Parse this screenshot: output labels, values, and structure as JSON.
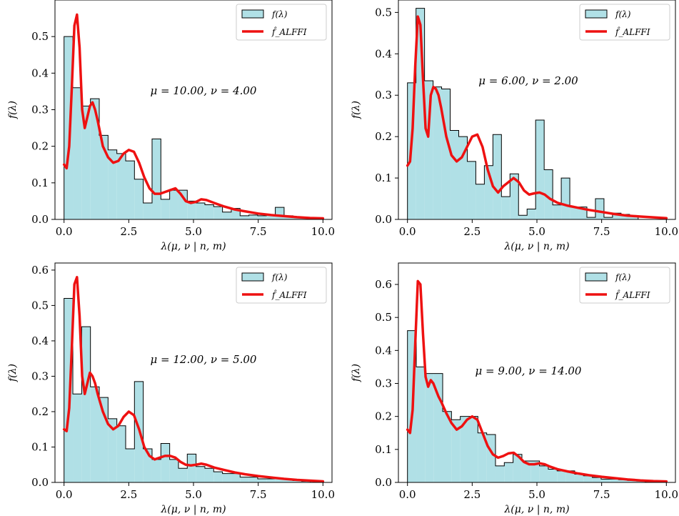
{
  "colors": {
    "hist_fill": "#b0e0e6",
    "hist_edge": "#000000",
    "curve": "#ee1111",
    "legend_border": "#cccccc"
  },
  "chart_data": [
    {
      "type": "bar",
      "subtype": "histogram_with_density_curve",
      "annotation": "μ = 10.00, ν = 4.00",
      "xlabel": "λ(μ, ν | n, m)",
      "ylabel": "f(λ)",
      "xlim": [
        -0.35,
        10.35
      ],
      "ylim": [
        0,
        0.6
      ],
      "xticks": [
        "0.0",
        "2.5",
        "5.0",
        "7.5",
        "10.0"
      ],
      "yticks": [
        "0.0",
        "0.1",
        "0.2",
        "0.3",
        "0.4",
        "0.5"
      ],
      "ytick_values": [
        0,
        0.1,
        0.2,
        0.3,
        0.4,
        0.5
      ],
      "legend_position": "upper right",
      "legend": [
        "f(λ)",
        "f̂_ALFFI"
      ],
      "histogram": {
        "bin_edges": [
          0.0,
          0.34,
          0.68,
          1.02,
          1.36,
          1.7,
          2.04,
          2.38,
          2.72,
          3.06,
          3.4,
          3.74,
          4.08,
          4.42,
          4.76,
          5.1,
          5.44,
          5.78,
          6.12,
          6.46,
          6.8,
          7.14,
          7.48,
          7.82,
          8.16,
          8.5,
          8.84,
          9.18,
          9.52
        ],
        "values": [
          0.5,
          0.36,
          0.31,
          0.33,
          0.23,
          0.19,
          0.18,
          0.16,
          0.11,
          0.045,
          0.22,
          0.055,
          0.08,
          0.08,
          0.05,
          0.045,
          0.04,
          0.035,
          0.02,
          0.03,
          0.01,
          0.012,
          0.01,
          0.012,
          0.033,
          0.01,
          0.005,
          0.003
        ]
      },
      "curve": {
        "x": [
          0.0,
          0.1,
          0.2,
          0.3,
          0.4,
          0.5,
          0.6,
          0.7,
          0.8,
          0.9,
          1.0,
          1.1,
          1.2,
          1.3,
          1.5,
          1.7,
          1.9,
          2.1,
          2.3,
          2.5,
          2.7,
          2.9,
          3.1,
          3.3,
          3.5,
          3.7,
          3.9,
          4.1,
          4.3,
          4.5,
          4.7,
          4.9,
          5.1,
          5.3,
          5.5,
          5.8,
          6.2,
          6.6,
          7.0,
          7.5,
          8.0,
          8.5,
          9.0,
          9.5,
          10.0
        ],
        "y": [
          0.15,
          0.14,
          0.2,
          0.36,
          0.53,
          0.56,
          0.47,
          0.3,
          0.25,
          0.28,
          0.31,
          0.32,
          0.3,
          0.27,
          0.2,
          0.17,
          0.155,
          0.16,
          0.18,
          0.19,
          0.185,
          0.155,
          0.115,
          0.085,
          0.07,
          0.07,
          0.075,
          0.08,
          0.085,
          0.07,
          0.05,
          0.045,
          0.048,
          0.055,
          0.053,
          0.045,
          0.035,
          0.027,
          0.022,
          0.016,
          0.012,
          0.009,
          0.006,
          0.004,
          0.003
        ]
      }
    },
    {
      "type": "bar",
      "subtype": "histogram_with_density_curve",
      "annotation": "μ = 6.00, ν = 2.00",
      "xlabel": "λ(μ, ν | n, m)",
      "ylabel": "f(λ)",
      "xlim": [
        -0.35,
        10.35
      ],
      "ylim": [
        0,
        0.53
      ],
      "xticks": [
        "0.0",
        "2.5",
        "5.0",
        "7.5",
        "10.0"
      ],
      "yticks": [
        "0.0",
        "0.1",
        "0.2",
        "0.3",
        "0.4",
        "0.5"
      ],
      "ytick_values": [
        0,
        0.1,
        0.2,
        0.3,
        0.4,
        0.5
      ],
      "legend_position": "upper right",
      "legend": [
        "f(λ)",
        "f̂_ALFFI"
      ],
      "histogram": {
        "bin_edges": [
          0.0,
          0.33,
          0.66,
          0.99,
          1.32,
          1.65,
          1.98,
          2.31,
          2.64,
          2.97,
          3.3,
          3.63,
          3.96,
          4.29,
          4.62,
          4.95,
          5.28,
          5.61,
          5.94,
          6.27,
          6.6,
          6.93,
          7.26,
          7.59,
          7.92,
          8.25,
          8.58,
          8.91
        ],
        "values": [
          0.33,
          0.51,
          0.335,
          0.32,
          0.315,
          0.215,
          0.2,
          0.14,
          0.085,
          0.13,
          0.205,
          0.055,
          0.11,
          0.01,
          0.025,
          0.24,
          0.12,
          0.035,
          0.1,
          0.03,
          0.03,
          0.005,
          0.05,
          0.005,
          0.015,
          0.012,
          0.008
        ]
      },
      "curve": {
        "x": [
          0.0,
          0.1,
          0.2,
          0.3,
          0.4,
          0.5,
          0.6,
          0.7,
          0.8,
          0.9,
          1.0,
          1.1,
          1.2,
          1.3,
          1.5,
          1.7,
          1.9,
          2.1,
          2.3,
          2.5,
          2.7,
          2.9,
          3.1,
          3.3,
          3.5,
          3.7,
          3.9,
          4.1,
          4.3,
          4.5,
          4.7,
          4.9,
          5.1,
          5.3,
          5.5,
          5.8,
          6.2,
          6.6,
          7.0,
          7.5,
          8.0,
          8.5,
          9.0,
          9.5,
          10.0
        ],
        "y": [
          0.13,
          0.14,
          0.22,
          0.37,
          0.49,
          0.47,
          0.34,
          0.22,
          0.2,
          0.3,
          0.32,
          0.315,
          0.3,
          0.27,
          0.2,
          0.155,
          0.14,
          0.15,
          0.175,
          0.2,
          0.205,
          0.175,
          0.12,
          0.08,
          0.065,
          0.08,
          0.09,
          0.1,
          0.09,
          0.07,
          0.06,
          0.063,
          0.065,
          0.06,
          0.05,
          0.04,
          0.033,
          0.028,
          0.023,
          0.018,
          0.013,
          0.009,
          0.007,
          0.005,
          0.003
        ]
      }
    },
    {
      "type": "bar",
      "subtype": "histogram_with_density_curve",
      "annotation": "μ = 12.00, ν = 5.00",
      "xlabel": "λ(μ, ν | n, m)",
      "ylabel": "f(λ)",
      "xlim": [
        -0.35,
        10.35
      ],
      "ylim": [
        0,
        0.62
      ],
      "xticks": [
        "0.0",
        "2.5",
        "5.0",
        "7.5",
        "10.0"
      ],
      "yticks": [
        "0.0",
        "0.1",
        "0.2",
        "0.3",
        "0.4",
        "0.5",
        "0.6"
      ],
      "ytick_values": [
        0,
        0.1,
        0.2,
        0.3,
        0.4,
        0.5,
        0.6
      ],
      "legend_position": "upper right",
      "legend": [
        "f(λ)",
        "f̂_ALFFI"
      ],
      "histogram": {
        "bin_edges": [
          0.0,
          0.34,
          0.68,
          1.02,
          1.36,
          1.7,
          2.04,
          2.38,
          2.72,
          3.06,
          3.4,
          3.74,
          4.08,
          4.42,
          4.76,
          5.1,
          5.44,
          5.78,
          6.12,
          6.46,
          6.8,
          7.14,
          7.48,
          7.82,
          8.16,
          8.5,
          8.84,
          9.18,
          9.52
        ],
        "values": [
          0.52,
          0.25,
          0.44,
          0.27,
          0.24,
          0.18,
          0.16,
          0.095,
          0.285,
          0.095,
          0.065,
          0.11,
          0.065,
          0.04,
          0.08,
          0.045,
          0.04,
          0.03,
          0.025,
          0.025,
          0.015,
          0.015,
          0.01,
          0.01,
          0.01,
          0.008,
          0.005,
          0.003
        ]
      },
      "curve": {
        "x": [
          0.0,
          0.1,
          0.2,
          0.3,
          0.4,
          0.5,
          0.6,
          0.7,
          0.8,
          0.9,
          1.0,
          1.1,
          1.2,
          1.3,
          1.5,
          1.7,
          1.9,
          2.1,
          2.3,
          2.5,
          2.7,
          2.9,
          3.1,
          3.3,
          3.5,
          3.7,
          3.9,
          4.1,
          4.3,
          4.5,
          4.7,
          4.9,
          5.1,
          5.3,
          5.5,
          5.8,
          6.2,
          6.6,
          7.0,
          7.5,
          8.0,
          8.5,
          9.0,
          9.5,
          10.0
        ],
        "y": [
          0.15,
          0.145,
          0.21,
          0.38,
          0.56,
          0.58,
          0.47,
          0.3,
          0.25,
          0.28,
          0.31,
          0.3,
          0.28,
          0.25,
          0.2,
          0.165,
          0.15,
          0.16,
          0.185,
          0.2,
          0.19,
          0.15,
          0.1,
          0.075,
          0.065,
          0.07,
          0.075,
          0.075,
          0.07,
          0.058,
          0.05,
          0.048,
          0.05,
          0.053,
          0.05,
          0.042,
          0.035,
          0.028,
          0.023,
          0.018,
          0.014,
          0.01,
          0.007,
          0.005,
          0.003
        ]
      }
    },
    {
      "type": "bar",
      "subtype": "histogram_with_density_curve",
      "annotation": "μ = 9.00, ν = 14.00",
      "xlabel": "λ(μ, ν | n, m)",
      "ylabel": "f(λ)",
      "xlim": [
        -0.35,
        10.35
      ],
      "ylim": [
        0,
        0.665
      ],
      "xticks": [
        "0.0",
        "2.5",
        "5.0",
        "7.5",
        "10.0"
      ],
      "yticks": [
        "0.0",
        "0.1",
        "0.2",
        "0.3",
        "0.4",
        "0.5",
        "0.6"
      ],
      "ytick_values": [
        0,
        0.1,
        0.2,
        0.3,
        0.4,
        0.5,
        0.6
      ],
      "legend_position": "upper right",
      "legend": [
        "f(λ)",
        "f̂_ALFFI"
      ],
      "histogram": {
        "bin_edges": [
          0.0,
          0.34,
          0.68,
          1.02,
          1.36,
          1.7,
          2.04,
          2.38,
          2.72,
          3.06,
          3.4,
          3.74,
          4.08,
          4.42,
          4.76,
          5.1,
          5.44,
          5.78,
          6.12,
          6.46,
          6.8,
          7.14,
          7.48,
          7.82,
          8.16,
          8.5,
          8.84,
          9.18,
          9.52
        ],
        "values": [
          0.46,
          0.35,
          0.33,
          0.33,
          0.215,
          0.19,
          0.2,
          0.2,
          0.15,
          0.145,
          0.05,
          0.06,
          0.085,
          0.065,
          0.065,
          0.05,
          0.04,
          0.035,
          0.035,
          0.025,
          0.02,
          0.015,
          0.01,
          0.01,
          0.008,
          0.006,
          0.004,
          0.002
        ]
      },
      "curve": {
        "x": [
          0.0,
          0.1,
          0.2,
          0.3,
          0.4,
          0.5,
          0.6,
          0.7,
          0.8,
          0.9,
          1.0,
          1.1,
          1.2,
          1.3,
          1.5,
          1.7,
          1.9,
          2.1,
          2.3,
          2.5,
          2.7,
          2.9,
          3.1,
          3.3,
          3.5,
          3.7,
          3.9,
          4.1,
          4.3,
          4.5,
          4.7,
          4.9,
          5.1,
          5.3,
          5.5,
          5.8,
          6.2,
          6.6,
          7.0,
          7.5,
          8.0,
          8.5,
          9.0,
          9.5,
          10.0
        ],
        "y": [
          0.16,
          0.15,
          0.22,
          0.42,
          0.61,
          0.6,
          0.45,
          0.32,
          0.29,
          0.31,
          0.3,
          0.28,
          0.26,
          0.245,
          0.21,
          0.18,
          0.16,
          0.17,
          0.19,
          0.2,
          0.19,
          0.15,
          0.11,
          0.085,
          0.075,
          0.08,
          0.088,
          0.09,
          0.078,
          0.062,
          0.055,
          0.055,
          0.058,
          0.055,
          0.048,
          0.04,
          0.033,
          0.027,
          0.022,
          0.017,
          0.013,
          0.009,
          0.006,
          0.004,
          0.003
        ]
      }
    }
  ]
}
